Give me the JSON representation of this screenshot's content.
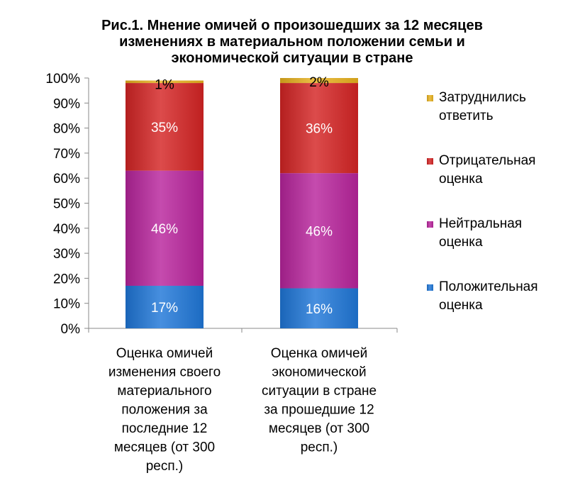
{
  "chart_data": {
    "type": "bar",
    "stacked": true,
    "percent": true,
    "title": "Рис.1. Мнение омичей о произошедших за 12 месяцев изменениях в материальном положении семьи и экономической ситуации в стране",
    "title_lines": [
      "Рис.1. Мнение омичей о произошедших за 12 месяцев",
      "изменениях в материальном положении семьи и",
      "экономической ситуации в стране"
    ],
    "categories": [
      "Оценка омичей изменения своего материального положения за последние 12 месяцев (от 300 респ.)",
      "Оценка омичей экономической ситуации в стране за прошедшие 12 месяцев (от 300 респ.)"
    ],
    "category_lines": [
      [
        "Оценка омичей",
        "изменения своего",
        "материального",
        "положения за",
        "последние 12",
        "месяцев (от 300",
        "респ.)"
      ],
      [
        "Оценка омичей",
        "экономической",
        "ситуации в стране",
        "за прошедшие 12",
        "месяцев (от 300",
        "респ.)"
      ]
    ],
    "ylim": [
      0,
      100
    ],
    "yticks": [
      0,
      10,
      20,
      30,
      40,
      50,
      60,
      70,
      80,
      90,
      100
    ],
    "ytick_labels": [
      "0%",
      "10%",
      "20%",
      "30%",
      "40%",
      "50%",
      "60%",
      "70%",
      "80%",
      "90%",
      "100%"
    ],
    "grid": false,
    "legend_position": "right",
    "series": [
      {
        "name": "Положительная оценка",
        "legend_lines": [
          "Положительная",
          "оценка"
        ],
        "values": [
          17,
          16
        ],
        "labels": [
          "17%",
          "16%"
        ],
        "color": "#1f77d8",
        "label_color": "#ffffff"
      },
      {
        "name": "Нейтральная оценка",
        "legend_lines": [
          "Нейтральная",
          "оценка"
        ],
        "values": [
          46,
          46
        ],
        "labels": [
          "46%",
          "46%"
        ],
        "color": "#b8249c",
        "label_color": "#ffffff"
      },
      {
        "name": "Отрицательная оценка",
        "legend_lines": [
          "Отрицательная",
          "оценка"
        ],
        "values": [
          35,
          36
        ],
        "labels": [
          "35%",
          "36%"
        ],
        "color": "#d42424",
        "label_color": "#ffffff"
      },
      {
        "name": "Затруднились ответить",
        "legend_lines": [
          "Затруднились",
          "ответить"
        ],
        "values": [
          1,
          2
        ],
        "labels": [
          "1%",
          "2%"
        ],
        "color": "#e8b21e",
        "label_color": "#000000"
      }
    ]
  }
}
